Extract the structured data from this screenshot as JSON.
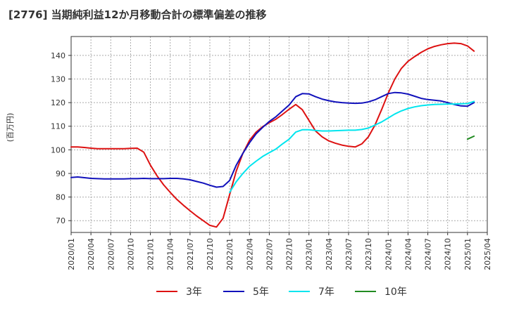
{
  "chart_data": {
    "type": "line",
    "title": "[2776]  当期純利益12か月移動合計の標準偏差の推移",
    "ylabel": "(百万円)",
    "xlabel": "",
    "ylim": [
      65,
      148
    ],
    "yticks": [
      70,
      80,
      90,
      100,
      110,
      120,
      130,
      140
    ],
    "xlim": [
      "2020/01",
      "2025/04"
    ],
    "xticks": [
      "2020/01",
      "2020/04",
      "2020/07",
      "2020/10",
      "2021/01",
      "2021/04",
      "2021/07",
      "2021/10",
      "2022/01",
      "2022/04",
      "2022/07",
      "2022/10",
      "2023/01",
      "2023/04",
      "2023/07",
      "2023/10",
      "2024/01",
      "2024/04",
      "2024/07",
      "2024/10",
      "2025/01",
      "2025/04"
    ],
    "grid": true,
    "legend_position": "bottom",
    "series": [
      {
        "name": "3年",
        "color": "#dd1111",
        "points": [
          [
            "2020/01",
            101.2
          ],
          [
            "2020/02",
            101.2
          ],
          [
            "2020/03",
            101.0
          ],
          [
            "2020/04",
            100.7
          ],
          [
            "2020/05",
            100.5
          ],
          [
            "2020/06",
            100.5
          ],
          [
            "2020/07",
            100.5
          ],
          [
            "2020/08",
            100.5
          ],
          [
            "2020/09",
            100.5
          ],
          [
            "2020/10",
            100.6
          ],
          [
            "2020/11",
            100.7
          ],
          [
            "2020/12",
            99.0
          ],
          [
            "2021/01",
            93.5
          ],
          [
            "2021/02",
            89.0
          ],
          [
            "2021/03",
            85.2
          ],
          [
            "2021/04",
            82.0
          ],
          [
            "2021/05",
            79.0
          ],
          [
            "2021/06",
            76.5
          ],
          [
            "2021/07",
            74.2
          ],
          [
            "2021/08",
            72.0
          ],
          [
            "2021/09",
            70.0
          ],
          [
            "2021/10",
            68.0
          ],
          [
            "2021/11",
            67.3
          ],
          [
            "2021/12",
            71.0
          ],
          [
            "2022/01",
            81.0
          ],
          [
            "2022/02",
            91.0
          ],
          [
            "2022/03",
            98.5
          ],
          [
            "2022/04",
            104.0
          ],
          [
            "2022/05",
            107.5
          ],
          [
            "2022/06",
            109.8
          ],
          [
            "2022/07",
            111.5
          ],
          [
            "2022/08",
            113.0
          ],
          [
            "2022/09",
            115.0
          ],
          [
            "2022/10",
            117.2
          ],
          [
            "2022/11",
            119.2
          ],
          [
            "2022/12",
            117.0
          ],
          [
            "2023/01",
            112.5
          ],
          [
            "2023/02",
            108.0
          ],
          [
            "2023/03",
            105.5
          ],
          [
            "2023/04",
            103.8
          ],
          [
            "2023/05",
            102.8
          ],
          [
            "2023/06",
            102.0
          ],
          [
            "2023/07",
            101.5
          ],
          [
            "2023/08",
            101.2
          ],
          [
            "2023/09",
            102.5
          ],
          [
            "2023/10",
            105.5
          ],
          [
            "2023/11",
            110.5
          ],
          [
            "2023/12",
            117.0
          ],
          [
            "2024/01",
            124.0
          ],
          [
            "2024/02",
            130.0
          ],
          [
            "2024/03",
            134.5
          ],
          [
            "2024/04",
            137.5
          ],
          [
            "2024/05",
            139.5
          ],
          [
            "2024/06",
            141.3
          ],
          [
            "2024/07",
            142.8
          ],
          [
            "2024/08",
            143.8
          ],
          [
            "2024/09",
            144.5
          ],
          [
            "2024/10",
            145.0
          ],
          [
            "2024/11",
            145.2
          ],
          [
            "2024/12",
            145.0
          ],
          [
            "2025/01",
            144.0
          ],
          [
            "2025/02",
            141.8
          ]
        ]
      },
      {
        "name": "5年",
        "color": "#1111bb",
        "points": [
          [
            "2020/01",
            88.3
          ],
          [
            "2020/02",
            88.5
          ],
          [
            "2020/03",
            88.2
          ],
          [
            "2020/04",
            87.9
          ],
          [
            "2020/05",
            87.8
          ],
          [
            "2020/06",
            87.7
          ],
          [
            "2020/07",
            87.7
          ],
          [
            "2020/08",
            87.7
          ],
          [
            "2020/09",
            87.7
          ],
          [
            "2020/10",
            87.8
          ],
          [
            "2020/11",
            87.8
          ],
          [
            "2020/12",
            87.9
          ],
          [
            "2021/01",
            87.8
          ],
          [
            "2021/02",
            87.8
          ],
          [
            "2021/03",
            87.8
          ],
          [
            "2021/04",
            87.9
          ],
          [
            "2021/05",
            87.9
          ],
          [
            "2021/06",
            87.7
          ],
          [
            "2021/07",
            87.3
          ],
          [
            "2021/08",
            86.6
          ],
          [
            "2021/09",
            85.9
          ],
          [
            "2021/10",
            85.0
          ],
          [
            "2021/11",
            84.2
          ],
          [
            "2021/12",
            84.5
          ],
          [
            "2022/01",
            87.0
          ],
          [
            "2022/02",
            93.5
          ],
          [
            "2022/03",
            98.5
          ],
          [
            "2022/04",
            103.0
          ],
          [
            "2022/05",
            106.8
          ],
          [
            "2022/06",
            109.5
          ],
          [
            "2022/07",
            112.0
          ],
          [
            "2022/08",
            114.0
          ],
          [
            "2022/09",
            116.5
          ],
          [
            "2022/10",
            119.0
          ],
          [
            "2022/11",
            122.5
          ],
          [
            "2022/12",
            123.8
          ],
          [
            "2023/01",
            123.7
          ],
          [
            "2023/02",
            122.5
          ],
          [
            "2023/03",
            121.5
          ],
          [
            "2023/04",
            120.8
          ],
          [
            "2023/05",
            120.3
          ],
          [
            "2023/06",
            120.0
          ],
          [
            "2023/07",
            119.8
          ],
          [
            "2023/08",
            119.7
          ],
          [
            "2023/09",
            119.8
          ],
          [
            "2023/10",
            120.3
          ],
          [
            "2023/11",
            121.2
          ],
          [
            "2023/12",
            122.5
          ],
          [
            "2024/01",
            123.8
          ],
          [
            "2024/02",
            124.3
          ],
          [
            "2024/03",
            124.1
          ],
          [
            "2024/04",
            123.6
          ],
          [
            "2024/05",
            122.7
          ],
          [
            "2024/06",
            121.8
          ],
          [
            "2024/07",
            121.3
          ],
          [
            "2024/08",
            121.0
          ],
          [
            "2024/09",
            120.7
          ],
          [
            "2024/10",
            120.0
          ],
          [
            "2024/11",
            119.2
          ],
          [
            "2024/12",
            118.6
          ],
          [
            "2025/01",
            118.5
          ],
          [
            "2025/02",
            120.0
          ]
        ]
      },
      {
        "name": "7年",
        "color": "#00e5ee",
        "points": [
          [
            "2022/01",
            82.0
          ],
          [
            "2022/02",
            86.5
          ],
          [
            "2022/03",
            90.0
          ],
          [
            "2022/04",
            93.0
          ],
          [
            "2022/05",
            95.2
          ],
          [
            "2022/06",
            97.2
          ],
          [
            "2022/07",
            98.8
          ],
          [
            "2022/08",
            100.3
          ],
          [
            "2022/09",
            102.5
          ],
          [
            "2022/10",
            104.5
          ],
          [
            "2022/11",
            107.5
          ],
          [
            "2022/12",
            108.5
          ],
          [
            "2023/01",
            108.5
          ],
          [
            "2023/02",
            108.2
          ],
          [
            "2023/03",
            108.0
          ],
          [
            "2023/04",
            108.0
          ],
          [
            "2023/05",
            108.1
          ],
          [
            "2023/06",
            108.2
          ],
          [
            "2023/07",
            108.3
          ],
          [
            "2023/08",
            108.3
          ],
          [
            "2023/09",
            108.6
          ],
          [
            "2023/10",
            109.2
          ],
          [
            "2023/11",
            110.5
          ],
          [
            "2023/12",
            111.8
          ],
          [
            "2024/01",
            113.5
          ],
          [
            "2024/02",
            115.2
          ],
          [
            "2024/03",
            116.5
          ],
          [
            "2024/04",
            117.5
          ],
          [
            "2024/05",
            118.2
          ],
          [
            "2024/06",
            118.7
          ],
          [
            "2024/07",
            119.0
          ],
          [
            "2024/08",
            119.2
          ],
          [
            "2024/09",
            119.3
          ],
          [
            "2024/10",
            119.4
          ],
          [
            "2024/11",
            119.4
          ],
          [
            "2024/12",
            119.5
          ],
          [
            "2025/01",
            119.6
          ],
          [
            "2025/02",
            120.5
          ]
        ]
      },
      {
        "name": "10年",
        "color": "#228b22",
        "points": [
          [
            "2025/01",
            104.5
          ],
          [
            "2025/02",
            105.8
          ]
        ]
      }
    ]
  }
}
